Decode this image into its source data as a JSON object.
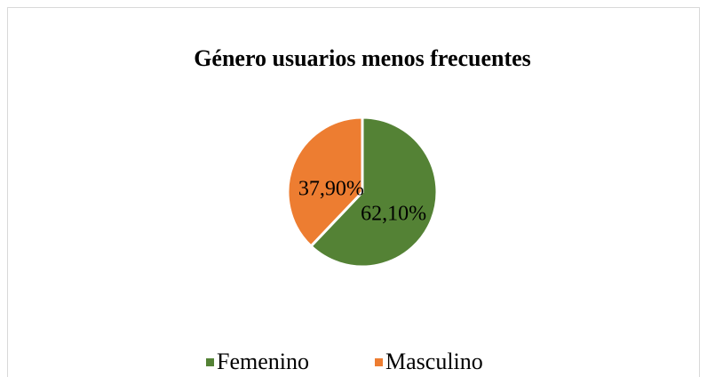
{
  "chart_data": {
    "type": "pie",
    "title": "Género usuarios menos frecuentes",
    "categories": [
      "Femenino",
      "Masculino"
    ],
    "values": [
      62.1,
      37.9
    ],
    "value_labels": [
      "62,10%",
      "37,90%"
    ],
    "colors": [
      "#548235",
      "#ed7d31"
    ],
    "legend": "bottom"
  }
}
